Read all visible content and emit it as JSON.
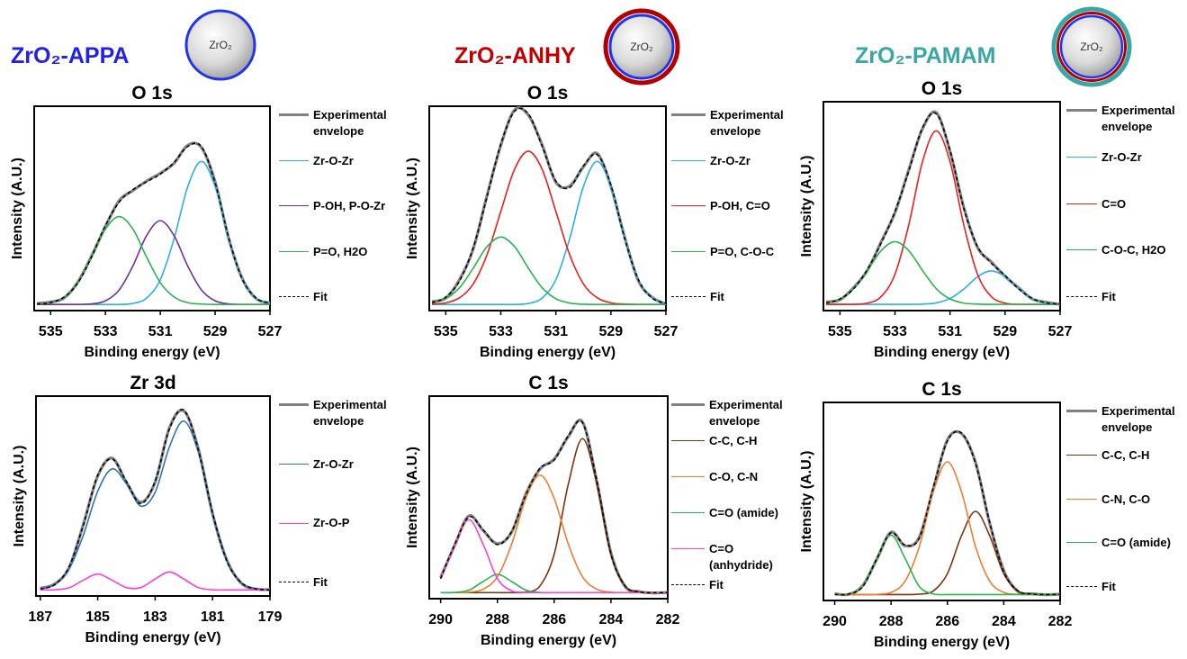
{
  "headers": [
    {
      "title": "ZrO₂-APPA",
      "particle_label": "ZrO₂"
    },
    {
      "title": "ZrO₂-ANHY",
      "particle_label": "ZrO₂"
    },
    {
      "title": "ZrO₂-PAMAM",
      "particle_label": "ZrO₂"
    }
  ],
  "chart_data": [
    {
      "type": "line",
      "title": "O 1s",
      "xlabel": "Binding energy (eV)",
      "ylabel": "Intensity (A.U.)",
      "xlim": [
        535.6,
        527
      ],
      "xticks": [
        535,
        533,
        531,
        529,
        527
      ],
      "ylim": [
        0,
        100
      ],
      "x": [
        535.5,
        535,
        534.5,
        534,
        533.5,
        533,
        532.5,
        532,
        531.5,
        531,
        530.5,
        530,
        529.5,
        529,
        528.5,
        528,
        527.5,
        527
      ],
      "series": [
        {
          "name": "Experimental envelope",
          "color": "#808080",
          "style": "thick",
          "values": [
            3.5,
            4.2,
            6.3,
            14.1,
            26.9,
            41.2,
            53.8,
            58.7,
            63.4,
            67.2,
            72.1,
            80.9,
            79.8,
            62.9,
            35.0,
            15.4,
            5.8,
            3.7
          ]
        },
        {
          "name": "Zr-O-Zr",
          "color": "#2ab0e4",
          "style": "solid",
          "values": [
            3,
            3,
            3,
            3,
            3,
            3,
            3,
            3.5,
            6.1,
            15.1,
            35.1,
            60.6,
            73,
            60.6,
            35.1,
            15.1,
            6.1,
            3.5
          ]
        },
        {
          "name": "P-OH, P-O-Zr",
          "color": "#7030a0",
          "style": "solid",
          "values": [
            3,
            3,
            3,
            3,
            3.3,
            4.8,
            10.1,
            21.8,
            36.7,
            44,
            36.7,
            21.8,
            10.1,
            4.8,
            3.3,
            3,
            3,
            3
          ]
        },
        {
          "name": "P=O, H2O",
          "color": "#2bb34c",
          "style": "solid",
          "values": [
            3.2,
            3.9,
            6.7,
            13.7,
            26.2,
            39.9,
            46,
            39.9,
            26.2,
            13.7,
            6.7,
            3.9,
            3.2,
            3,
            3,
            3,
            3,
            3
          ]
        },
        {
          "name": "Fit",
          "color": "#000000",
          "style": "dashed",
          "values": [
            3.2,
            3.9,
            6.7,
            13.7,
            26.5,
            41.7,
            53.1,
            59.2,
            63,
            66.8,
            72.5,
            80.3,
            80.3,
            62.4,
            35.4,
            15.1,
            6.1,
            3.5
          ]
        }
      ]
    },
    {
      "type": "line",
      "title": "O 1s",
      "xlabel": "Binding energy (eV)",
      "ylabel": "Intensity (A.U.)",
      "xlim": [
        535.6,
        527
      ],
      "xticks": [
        535,
        533,
        531,
        529,
        527
      ],
      "ylim": [
        0,
        100
      ],
      "x": [
        535.5,
        535,
        534.5,
        534,
        533.5,
        533,
        532.5,
        532,
        531.5,
        531,
        530.5,
        530,
        529.5,
        529,
        528.5,
        528,
        527.5,
        527
      ],
      "series": [
        {
          "name": "Experimental envelope",
          "color": "#808080",
          "style": "thick",
          "values": [
            4.4,
            6.1,
            15.2,
            30.3,
            56.4,
            80.9,
            98.2,
            95.7,
            81.1,
            62.8,
            60.9,
            70.3,
            76.9,
            60.8,
            35.9,
            14.6,
            6.5,
            3.2
          ]
        },
        {
          "name": "Zr-O-Zr",
          "color": "#2ab0e4",
          "style": "solid",
          "values": [
            3,
            3,
            3,
            3,
            3,
            3,
            3,
            3.5,
            6.1,
            15.1,
            35.1,
            60.6,
            73,
            60.6,
            35.1,
            15.1,
            6.1,
            3.5
          ]
        },
        {
          "name": "P-OH, C=O",
          "color": "#e8201e",
          "style": "solid",
          "values": [
            3.2,
            3.8,
            6.3,
            13.1,
            27.4,
            48.5,
            69.2,
            78,
            69.2,
            48.5,
            27.4,
            13.1,
            6.3,
            3.8,
            3.2,
            3,
            3,
            3
          ]
        },
        {
          "name": "P=O, C-O-C",
          "color": "#2bb34c",
          "style": "solid",
          "values": [
            3.7,
            5.8,
            11.2,
            20.8,
            31.3,
            36,
            31.3,
            20.8,
            11.2,
            5.8,
            3.7,
            3.1,
            3,
            3,
            3,
            3,
            3,
            3
          ]
        },
        {
          "name": "Fit",
          "color": "#000000",
          "style": "dashed",
          "values": [
            3.9,
            6.6,
            14.5,
            30.9,
            55.7,
            81.5,
            97.5,
            96.3,
            80.5,
            63.4,
            60.2,
            70.8,
            76.3,
            61.4,
            35.3,
            15.1,
            6.1,
            3.5
          ]
        }
      ]
    },
    {
      "type": "line",
      "title": "O 1s",
      "xlabel": "Binding energy (eV)",
      "ylabel": "Intensity (A.U.)",
      "xlim": [
        535.6,
        527
      ],
      "xticks": [
        535,
        533,
        531,
        529,
        527
      ],
      "ylim": [
        0,
        100
      ],
      "x": [
        535.5,
        535,
        534.5,
        534,
        533.5,
        533,
        532.5,
        532,
        531.5,
        531,
        530.5,
        530,
        529.5,
        529,
        528.5,
        528,
        527.5,
        527
      ],
      "series": [
        {
          "name": "Experimental envelope",
          "color": "#808080",
          "style": "thick",
          "values": [
            4.1,
            5.2,
            11.0,
            19.3,
            33.0,
            46.9,
            67.4,
            87.1,
            94.8,
            76.2,
            49.5,
            30.2,
            23.3,
            16.4,
            10.8,
            5.5,
            4.0,
            3.0
          ]
        },
        {
          "name": "Zr-O-Zr",
          "color": "#2ab0e4",
          "style": "solid",
          "values": [
            3,
            3,
            3,
            3,
            3,
            3,
            3,
            3.1,
            3.7,
            5.8,
            10.3,
            16.2,
            19,
            16.2,
            10.3,
            5.8,
            3.7,
            3.1
          ]
        },
        {
          "name": "C=O",
          "color": "#e8201e",
          "style": "solid",
          "values": [
            3,
            3,
            3,
            3.6,
            6.7,
            17.4,
            41,
            71.3,
            86,
            71.3,
            41,
            17.4,
            6.7,
            3.6,
            3,
            3,
            3,
            3
          ]
        },
        {
          "name": "C-O-C, H2O",
          "color": "#2bb34c",
          "style": "solid",
          "values": [
            3.6,
            5.6,
            10.5,
            19.2,
            28.7,
            33,
            28.7,
            19.2,
            10.5,
            5.6,
            3.6,
            3.1,
            3,
            3,
            3,
            3,
            3,
            3
          ]
        },
        {
          "name": "Fit",
          "color": "#000000",
          "style": "dashed",
          "values": [
            3.6,
            5.6,
            10.5,
            19.8,
            32.4,
            47.4,
            66.7,
            87.6,
            94.2,
            76.7,
            48.9,
            30.7,
            22.7,
            16.8,
            10.3,
            5.8,
            3.7,
            3.1
          ]
        }
      ]
    },
    {
      "type": "line",
      "title": "Zr 3d",
      "xlabel": "Binding energy (eV)",
      "ylabel": "Intensity (A.U.)",
      "xlim": [
        187.15,
        179
      ],
      "xticks": [
        187,
        185,
        183,
        181,
        179
      ],
      "ylim": [
        0,
        100
      ],
      "x": [
        187,
        186.5,
        186,
        185.5,
        185,
        184.5,
        184,
        183.5,
        183,
        182.5,
        182,
        181.5,
        181,
        180.5,
        180,
        179.5,
        179
      ],
      "series": [
        {
          "name": "Experimental envelope",
          "color": "#808080",
          "style": "thick",
          "values": [
            3.9,
            6.0,
            14.1,
            35.9,
            60.0,
            69.0,
            56.8,
            46.9,
            57.0,
            84.2,
            92.6,
            73.9,
            41.1,
            17.9,
            6.4,
            3.5,
            3.2
          ]
        },
        {
          "name": "Zr-O-Zr",
          "color": "#2e75b6",
          "style": "solid",
          "values": [
            3.5,
            5.6,
            13.4,
            30.5,
            52.4,
            63.6,
            56.1,
            45,
            51.9,
            74.7,
            87.5,
            72.1,
            41.5,
            17.5,
            6.7,
            3.6,
            3
          ]
        },
        {
          "name": "Zr-O-P",
          "color": "#ff3fd2",
          "style": "solid",
          "values": [
            3,
            3.1,
            4.1,
            7.9,
            11,
            7.9,
            4.2,
            4.2,
            8.5,
            12,
            8.5,
            4.2,
            3.1,
            3,
            3,
            3,
            3
          ]
        },
        {
          "name": "Fit",
          "color": "#000000",
          "style": "dashed",
          "values": [
            3.5,
            5.7,
            14.5,
            35.4,
            60.4,
            68.5,
            57.3,
            46.2,
            57.4,
            83.7,
            93,
            73.3,
            41.6,
            17.5,
            6.7,
            3.6,
            3
          ]
        }
      ]
    },
    {
      "type": "line",
      "title": "C 1s",
      "xlabel": "Binding energy (eV)",
      "ylabel": "Intensity (A.U.)",
      "xlim": [
        290.4,
        282
      ],
      "xticks": [
        290,
        288,
        286,
        284,
        282
      ],
      "ylim": [
        0,
        100
      ],
      "x": [
        290,
        289.5,
        289,
        288.5,
        288,
        287.5,
        287,
        286.5,
        286,
        285.5,
        285,
        284.5,
        284,
        283.5,
        283,
        282.5,
        282
      ],
      "series": [
        {
          "name": "Experimental envelope",
          "color": "#808080",
          "style": "thick",
          "values": [
            10.4,
            26.5,
            40.9,
            33.6,
            27.2,
            32.8,
            51.6,
            64.0,
            68.9,
            80.1,
            87.2,
            57.9,
            22.6,
            6.0,
            3.5,
            2.8,
            3.1
          ]
        },
        {
          "name": "C-C, C-H",
          "color": "#7b3410",
          "style": "solid",
          "values": [
            3,
            3,
            3,
            3,
            3,
            3,
            3.3,
            6.3,
            21.9,
            56.7,
            79,
            56.7,
            21.9,
            6.3,
            3.3,
            3,
            3
          ]
        },
        {
          "name": "C-O, C-N",
          "color": "#ee7d30",
          "style": "solid",
          "values": [
            3,
            3,
            3.2,
            4.7,
            10.8,
            26.8,
            49.5,
            61,
            49.5,
            26.8,
            10.8,
            4.7,
            3.2,
            3,
            3,
            3,
            3
          ]
        },
        {
          "name": "C=O (amide)",
          "color": "#2bb34c",
          "style": "solid",
          "values": [
            3,
            3.1,
            4.2,
            8.5,
            12,
            8.5,
            4.2,
            3.1,
            3,
            3,
            3,
            3,
            3,
            3,
            3,
            3,
            3
          ]
        },
        {
          "name": "C=O (anhydride)",
          "color": "#ff3fd2",
          "style": "solid",
          "values": [
            9.9,
            26.8,
            39,
            26.8,
            9.9,
            3.9,
            3.1,
            3,
            3,
            3,
            3,
            3,
            3,
            3,
            3,
            3,
            3
          ]
        },
        {
          "name": "Fit",
          "color": "#000000",
          "style": "dashed",
          "values": [
            9.9,
            26.9,
            40.4,
            34,
            26.7,
            33.2,
            51.1,
            64.4,
            68.4,
            80.5,
            86.8,
            58.4,
            22.1,
            6.3,
            3.3,
            3,
            3
          ]
        }
      ]
    },
    {
      "type": "line",
      "title": "C 1s",
      "xlabel": "Binding energy (eV)",
      "ylabel": "Intensity (A.U.)",
      "xlim": [
        290.4,
        282
      ],
      "xticks": [
        290,
        288,
        286,
        284,
        282
      ],
      "ylim": [
        0,
        100
      ],
      "x": [
        290,
        289.5,
        289,
        288.5,
        288,
        287.5,
        287,
        286.5,
        286,
        285.5,
        285,
        284.5,
        284,
        283.5,
        283,
        282.5,
        282
      ],
      "series": [
        {
          "name": "Experimental envelope",
          "color": "#808080",
          "style": "thick",
          "values": [
            3.4,
            3.1,
            7.6,
            21.0,
            34.5,
            27.6,
            31.9,
            56.5,
            81.1,
            84.2,
            69.6,
            39.0,
            15.1,
            4.6,
            3.4,
            2.9,
            3.2
          ]
        },
        {
          "name": "C-C, C-H",
          "color": "#7b3410",
          "style": "solid",
          "values": [
            3,
            3,
            3,
            3,
            3,
            3,
            3.2,
            4.8,
            13.5,
            32.7,
            45,
            32.7,
            13.5,
            4.8,
            3.2,
            3,
            3
          ]
        },
        {
          "name": "C-N, C-O",
          "color": "#ee7d30",
          "style": "solid",
          "values": [
            3,
            3,
            3,
            3.1,
            4.1,
            9.8,
            27.1,
            54.9,
            70,
            54.9,
            27.1,
            9.8,
            4.1,
            3.1,
            3,
            3,
            3
          ]
        },
        {
          "name": "C=O (amide)",
          "color": "#2bb34c",
          "style": "solid",
          "values": [
            3,
            3.3,
            7.1,
            21.2,
            33,
            21.2,
            7.1,
            3.3,
            3,
            3,
            3,
            3,
            3,
            3,
            3,
            3,
            3
          ]
        },
        {
          "name": "Fit",
          "color": "#000000",
          "style": "dashed",
          "values": [
            3,
            3.3,
            7.1,
            21.3,
            34.1,
            28,
            31.4,
            57,
            80.5,
            84.6,
            69.1,
            39.5,
            14.6,
            4.9,
            3.2,
            3,
            3
          ]
        }
      ]
    }
  ]
}
